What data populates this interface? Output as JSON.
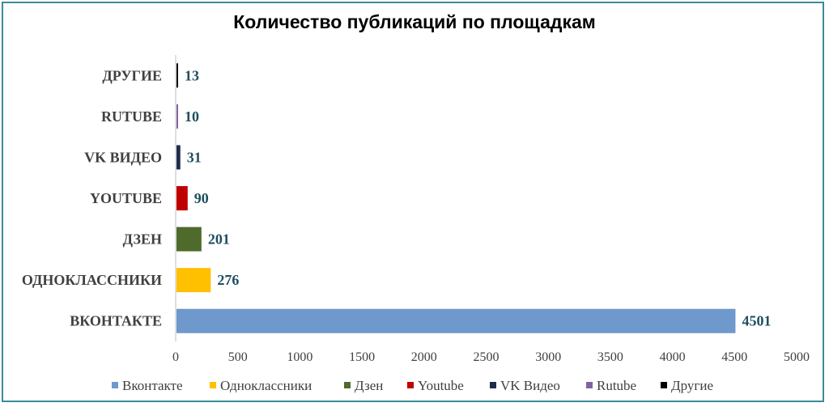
{
  "chart_data": {
    "type": "bar",
    "orientation": "horizontal",
    "title": "Количество публикаций по площадкам",
    "categories": [
      "ВКОНТАКТЕ",
      "ОДНОКЛАССНИКИ",
      "ДЗЕН",
      "YOUTUBE",
      "VK ВИДЕО",
      "RUTUBE",
      "ДРУГИЕ"
    ],
    "values": [
      4501,
      276,
      201,
      90,
      31,
      10,
      13
    ],
    "colors": [
      "#6f98cc",
      "#ffc000",
      "#4e6b2c",
      "#c00000",
      "#1f2d4a",
      "#8064a2",
      "#000000"
    ],
    "xlim": [
      0,
      5000
    ],
    "xticks": [
      "0",
      "500",
      "1000",
      "1500",
      "2000",
      "2500",
      "3000",
      "3500",
      "4000",
      "4500",
      "5000"
    ],
    "grid": false,
    "legend_position": "bottom",
    "legend": [
      "Вконтакте",
      "Одноклассники",
      "Дзен",
      "Youtube",
      "VK Видео",
      "Rutube",
      "Другие"
    ]
  }
}
